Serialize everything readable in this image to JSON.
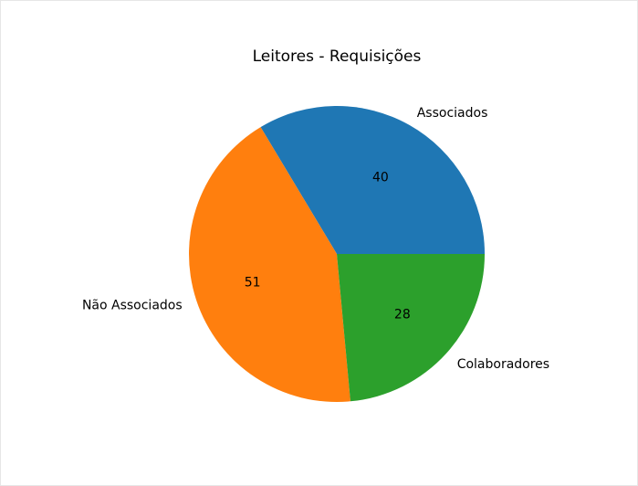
{
  "chart_data": {
    "type": "pie",
    "title": "Leitores - Requisições",
    "categories": [
      "Associados",
      "Não Associados",
      "Colaboradores"
    ],
    "values": [
      40,
      51,
      28
    ],
    "colors": [
      "#1f77b4",
      "#ff7f0e",
      "#2ca02c"
    ],
    "start_angle_deg": 0,
    "direction": "counterclockwise"
  }
}
